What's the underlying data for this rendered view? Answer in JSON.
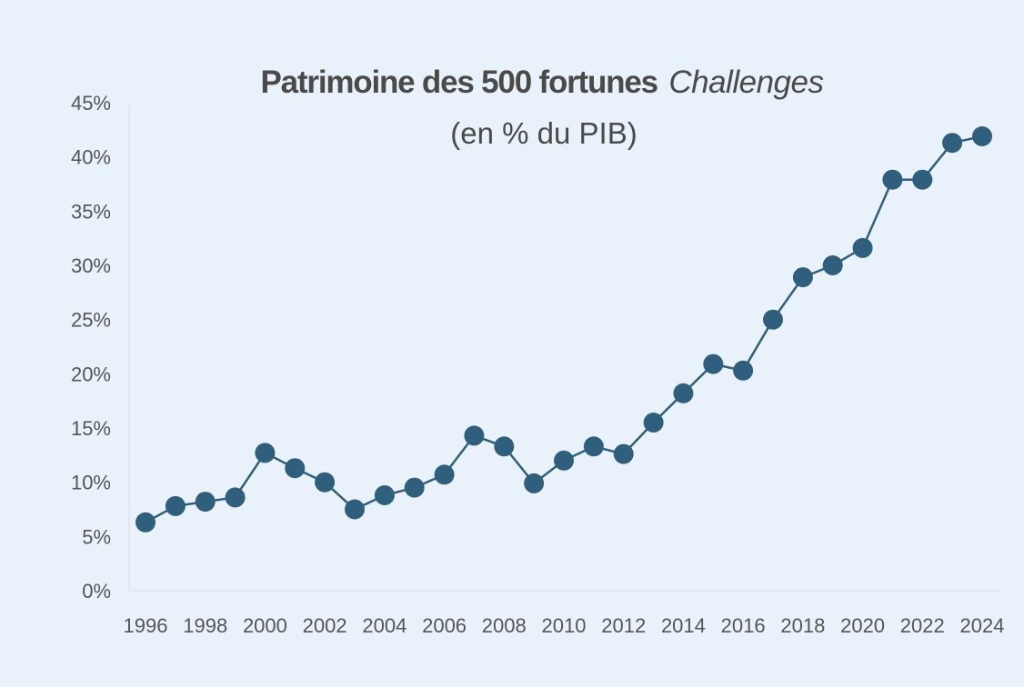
{
  "chart_data": {
    "type": "line",
    "title": "Patrimoine des 500 fortunes",
    "title_italic": "Challenges",
    "subtitle": "(en % du PIB)",
    "xlabel": "",
    "ylabel": "",
    "x": [
      1996,
      1997,
      1998,
      1999,
      2000,
      2001,
      2002,
      2003,
      2004,
      2005,
      2006,
      2007,
      2008,
      2009,
      2010,
      2011,
      2012,
      2013,
      2014,
      2015,
      2016,
      2017,
      2018,
      2019,
      2020,
      2021,
      2022,
      2023,
      2024
    ],
    "series": [
      {
        "name": "",
        "values": [
          6.3,
          7.8,
          8.2,
          8.6,
          12.7,
          11.3,
          10.0,
          7.5,
          8.8,
          9.5,
          10.7,
          14.3,
          13.3,
          9.9,
          12.0,
          13.3,
          12.6,
          15.5,
          18.2,
          20.9,
          20.3,
          25.0,
          28.9,
          30.0,
          31.6,
          37.9,
          37.9,
          41.3,
          41.9
        ],
        "color": "#2f5f7d"
      }
    ],
    "ylim": [
      0,
      45
    ],
    "xlim": [
      1996,
      2024
    ],
    "yticks": [
      "0%",
      "5%",
      "10%",
      "15%",
      "20%",
      "25%",
      "30%",
      "35%",
      "40%",
      "45%"
    ],
    "ytick_values": [
      0,
      5,
      10,
      15,
      20,
      25,
      30,
      35,
      40,
      45
    ],
    "xticks": [
      "1996",
      "1998",
      "2000",
      "2002",
      "2004",
      "2006",
      "2008",
      "2010",
      "2012",
      "2014",
      "2016",
      "2018",
      "2020",
      "2022",
      "2024"
    ],
    "xtick_values": [
      1996,
      1998,
      2000,
      2002,
      2004,
      2006,
      2008,
      2010,
      2012,
      2014,
      2016,
      2018,
      2020,
      2022,
      2024
    ],
    "grid": false,
    "legend": "none",
    "background": "#e9f2fa"
  }
}
